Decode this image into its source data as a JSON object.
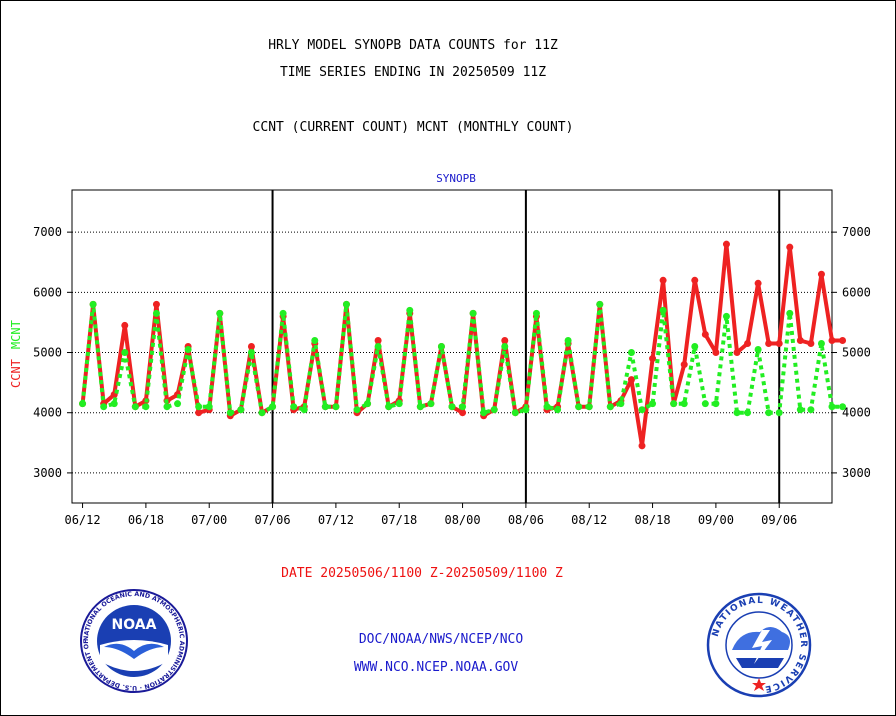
{
  "header": {
    "line1": "HRLY MODEL SYNOPB DATA COUNTS for 11Z",
    "line2": "TIME SERIES ENDING IN 20250509 11Z",
    "line3": "CCNT (CURRENT COUNT) MCNT (MONTHLY COUNT)"
  },
  "footer": {
    "date_range": "DATE 20250506/1100 Z-20250509/1100 Z",
    "org_path": "DOC/NOAA/NWS/NCEP/NCO",
    "website": "WWW.NCO.NCEP.NOAA.GOV"
  },
  "logos": {
    "noaa_text": "NOAA",
    "noaa_ring": "NATIONAL OCEANIC AND ATMOSPHERIC ADMINISTRATION · U.S. DEPARTMENT OF COMMERCE",
    "nws_ring": "NATIONAL WEATHER SERVICE"
  },
  "chart_data": {
    "type": "line",
    "title": "SYNOPB",
    "ylabel_left": [
      "CCNT",
      "MCNT"
    ],
    "ylim": [
      2500,
      7700
    ],
    "yticks": [
      3000,
      4000,
      5000,
      6000,
      7000
    ],
    "grid": true,
    "x_tick_labels": [
      "06/12",
      "06/18",
      "07/00",
      "07/06",
      "07/12",
      "07/18",
      "08/00",
      "08/06",
      "08/12",
      "08/18",
      "09/00",
      "09/06"
    ],
    "x_range_index": [
      -1,
      71
    ],
    "x_tick_index": [
      0,
      6,
      12,
      18,
      24,
      30,
      36,
      42,
      48,
      54,
      60,
      66
    ],
    "day_boundaries_index": [
      18,
      42,
      66
    ],
    "colors": {
      "ccnt": "#ee2222",
      "mcnt": "#22ee22",
      "axis": "#000000"
    },
    "series": [
      {
        "name": "CCNT",
        "style": "solid",
        "values": [
          4150,
          5800,
          4150,
          4300,
          5450,
          4100,
          4200,
          5800,
          4200,
          4300,
          5100,
          4000,
          4050,
          5650,
          3950,
          4050,
          5100,
          4000,
          4100,
          5600,
          4050,
          4100,
          5150,
          4100,
          4100,
          5800,
          4000,
          4150,
          5200,
          4100,
          4200,
          5650,
          4100,
          4150,
          5100,
          4100,
          4000,
          5650,
          3950,
          4050,
          5200,
          4000,
          4100,
          5600,
          4050,
          4100,
          5150,
          4100,
          4100,
          5800,
          4100,
          4200,
          4550,
          3450,
          4900,
          6200,
          4150,
          4800,
          6200,
          5300,
          5000,
          6800,
          5000,
          5150,
          6150,
          5150,
          5150,
          6750,
          5200,
          5150,
          6300,
          5200,
          5200
        ]
      },
      {
        "name": "MCNT",
        "style": "dotted",
        "values": [
          4150,
          5800,
          4100,
          4150,
          5000,
          4100,
          4100,
          5650,
          4100,
          4150,
          5050,
          4100,
          4100,
          5650,
          4000,
          4050,
          5000,
          4000,
          4100,
          5650,
          4100,
          4050,
          5200,
          4100,
          4100,
          5800,
          4050,
          4150,
          5100,
          4100,
          4150,
          5700,
          4100,
          4150,
          5100,
          4100,
          4100,
          5650,
          4000,
          4050,
          5100,
          4000,
          4050,
          5650,
          4100,
          4050,
          5200,
          4100,
          4100,
          5800,
          4100,
          4150,
          5000,
          4050,
          4150,
          5700,
          4150,
          4150,
          5100,
          4150,
          4150,
          5600,
          4000,
          4000,
          5050,
          4000,
          4000,
          5650,
          4050,
          4050,
          5150,
          4100,
          4100
        ]
      }
    ]
  }
}
